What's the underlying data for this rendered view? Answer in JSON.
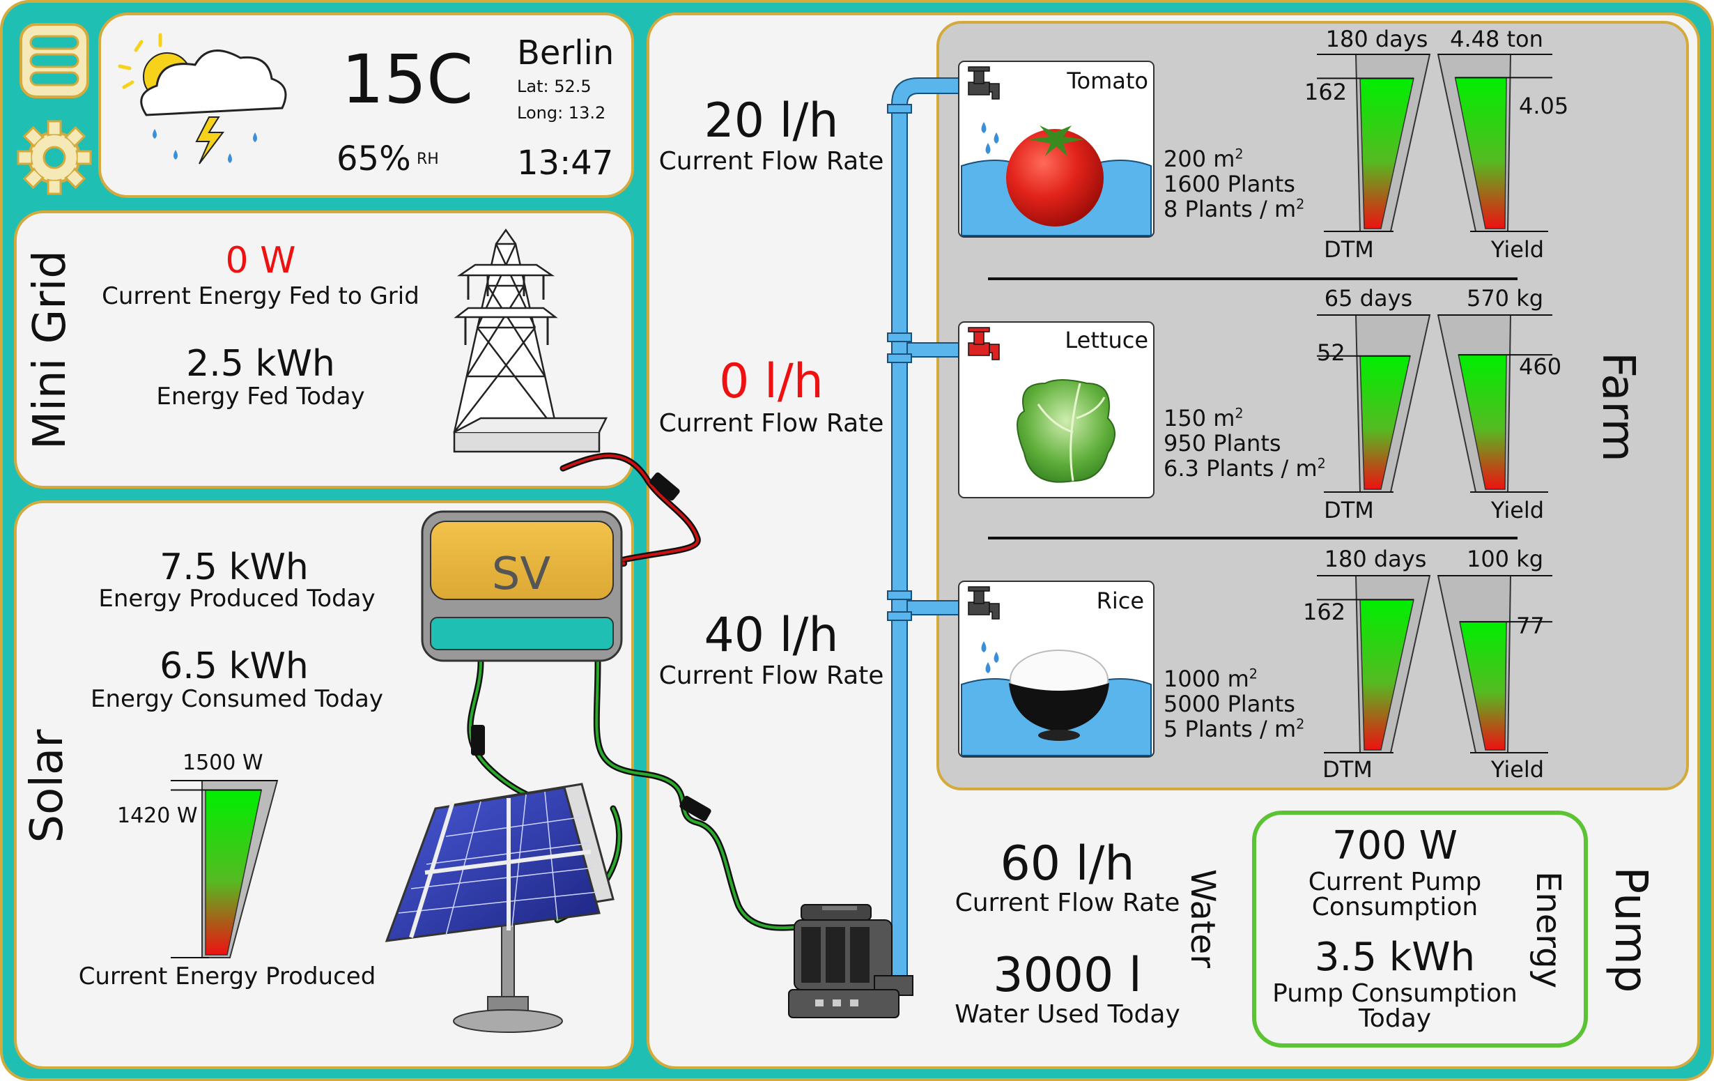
{
  "colors": {
    "frame": "#1fbfb4",
    "panel_border": "#d4aa3c",
    "panel_bg": "#f4f4f4",
    "farm_bg": "#cccccc",
    "pipe": "#5ab5ec",
    "pump_frame": "#5cc334",
    "highlight_red": "#ee1111",
    "gauge_green": "#00ee00",
    "gauge_red": "#ee1111"
  },
  "sidebar": {
    "menu_icon": "hamburger-menu-icon",
    "settings_icon": "gear-icon"
  },
  "weather": {
    "icon": "thunderstorm-icon",
    "temperature": "15C",
    "humidity_value": "65%",
    "humidity_unit": "RH",
    "city": "Berlin",
    "lat": "Lat: 52.5",
    "long": "Long: 13.2",
    "time": "13:47"
  },
  "mini_grid": {
    "title": "Mini Grid",
    "current_value": "0 W",
    "current_label": "Current Energy Fed to Grid",
    "today_value": "2.5 kWh",
    "today_label": "Energy Fed Today",
    "icon": "power-tower-icon"
  },
  "solar": {
    "title": "Solar",
    "produced_value": "7.5 kWh",
    "produced_label": "Energy Produced Today",
    "consumed_value": "6.5 kWh",
    "consumed_label": "Energy Consumed Today",
    "gauge_label": "Current Energy Produced",
    "gauge_max_label": "1500 W",
    "gauge_value_label": "1420 W",
    "gauge_max": 1500,
    "gauge_value": 1420,
    "battery_label": "SV",
    "panel_icon": "solar-panel-icon"
  },
  "water_flows": [
    {
      "value": "20 l/h",
      "label": "Current Flow Rate",
      "highlight": false
    },
    {
      "value": "0 l/h",
      "label": "Current Flow Rate",
      "highlight": true
    },
    {
      "value": "40 l/h",
      "label": "Current Flow Rate",
      "highlight": false
    }
  ],
  "farm": {
    "title": "Farm",
    "crops": [
      {
        "name": "Tomato",
        "icon": "tomato-icon",
        "tap": "tap-open-icon",
        "area_num": "200 m",
        "area_sup": "2",
        "plants": "1600 Plants",
        "density_num": "8 Plants / m",
        "density_sup": "2",
        "dtm_total": "180 days",
        "dtm_value": "162",
        "dtm_max": 180,
        "dtm_current": 162,
        "yield_total": "4.48 ton",
        "yield_value": "4.05",
        "yield_max": 4.48,
        "yield_current": 4.05,
        "dtm_label": "DTM",
        "yield_label": "Yield"
      },
      {
        "name": "Lettuce",
        "icon": "lettuce-icon",
        "tap": "tap-closed-icon",
        "area_num": "150 m",
        "area_sup": "2",
        "plants": "950 Plants",
        "density_num": "6.3 Plants / m",
        "density_sup": "2",
        "dtm_total": "65 days",
        "dtm_value": "52",
        "dtm_max": 65,
        "dtm_current": 52,
        "yield_total": "570 kg",
        "yield_value": "460",
        "yield_max": 570,
        "yield_current": 460,
        "dtm_label": "DTM",
        "yield_label": "Yield"
      },
      {
        "name": "Rice",
        "icon": "rice-bowl-icon",
        "tap": "tap-open-icon",
        "area_num": "1000 m",
        "area_sup": "2",
        "plants": "5000 Plants",
        "density_num": "5 Plants / m",
        "density_sup": "2",
        "dtm_total": "180 days",
        "dtm_value": "162",
        "dtm_max": 180,
        "dtm_current": 162,
        "yield_total": "100 kg",
        "yield_value": "77",
        "yield_max": 100,
        "yield_current": 77,
        "dtm_label": "DTM",
        "yield_label": "Yield"
      }
    ]
  },
  "water": {
    "title": "Water",
    "flow_value": "60 l/h",
    "flow_label": "Current Flow Rate",
    "used_value": "3000 l",
    "used_label": "Water Used Today"
  },
  "pump": {
    "title": "Pump",
    "icon": "water-pump-icon",
    "energy_title": "Energy",
    "consumption_value": "700 W",
    "consumption_label_1": "Current Pump",
    "consumption_label_2": "Consumption",
    "today_value": "3.5 kWh",
    "today_label_1": "Pump Consumption",
    "today_label_2": "Today"
  }
}
